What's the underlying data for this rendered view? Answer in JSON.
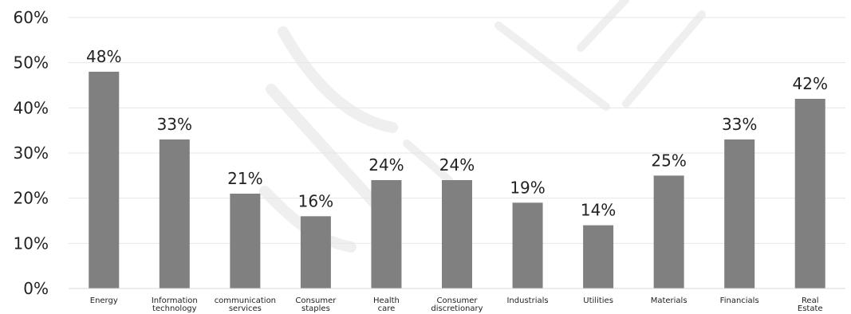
{
  "chart_data": {
    "type": "bar",
    "categories": [
      "Energy",
      "Information technology",
      "communication services",
      "Consumer staples",
      "Health care",
      "Consumer discretionary",
      "Industrials",
      "Utilities",
      "Materials",
      "Financials",
      "Real Estate"
    ],
    "values": [
      48,
      33,
      21,
      16,
      24,
      24,
      19,
      14,
      25,
      33,
      42
    ],
    "data_labels": [
      "48%",
      "33%",
      "21%",
      "16%",
      "24%",
      "24%",
      "19%",
      "14%",
      "25%",
      "33%",
      "42%"
    ],
    "y_ticks": [
      "0%",
      "10%",
      "20%",
      "30%",
      "40%",
      "50%",
      "60%"
    ],
    "ylim": [
      0,
      60
    ],
    "grid": true,
    "legend": "none",
    "title": "",
    "xlabel": "",
    "ylabel": ""
  },
  "colors": {
    "bar": "#808080",
    "axis_text": "#222222",
    "grid": "#e6e6e6",
    "watermark": "#efefef"
  }
}
